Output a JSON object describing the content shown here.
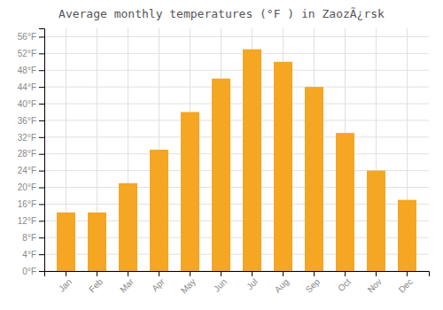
{
  "chart_data": {
    "type": "bar",
    "title": "Average monthly temperatures (°F ) in ZaozÃ¿rsk",
    "categories": [
      "Jan",
      "Feb",
      "Mar",
      "Apr",
      "May",
      "Jun",
      "Jul",
      "Aug",
      "Sep",
      "Oct",
      "Nov",
      "Dec"
    ],
    "values": [
      14,
      14,
      21,
      29,
      38,
      46,
      53,
      50,
      44,
      33,
      24,
      17
    ],
    "color": "#F5A623",
    "ylim": [
      0,
      58
    ],
    "yticks": [
      {
        "value": 0,
        "label": "0°F"
      },
      {
        "value": 4,
        "label": "4°F"
      },
      {
        "value": 8,
        "label": "8°F"
      },
      {
        "value": 12,
        "label": "12°F"
      },
      {
        "value": 16,
        "label": "16°F"
      },
      {
        "value": 20,
        "label": "20°F"
      },
      {
        "value": 24,
        "label": "24°F"
      },
      {
        "value": 28,
        "label": "28°F"
      },
      {
        "value": 32,
        "label": "32°F"
      },
      {
        "value": 36,
        "label": "36°F"
      },
      {
        "value": 40,
        "label": "40°F"
      },
      {
        "value": 44,
        "label": "44°F"
      },
      {
        "value": 48,
        "label": "48°F"
      },
      {
        "value": 52,
        "label": "52°F"
      },
      {
        "value": 56,
        "label": "56°F"
      }
    ],
    "grid": true
  }
}
